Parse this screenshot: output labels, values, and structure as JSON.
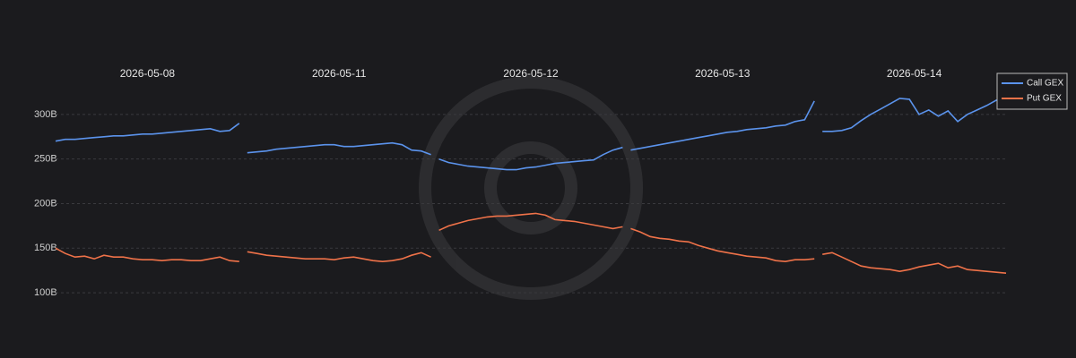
{
  "chart_data": {
    "type": "line",
    "series": [
      {
        "name": "Call GEX",
        "color": "#5b93ec"
      },
      {
        "name": "Put GEX",
        "color": "#ef7249"
      }
    ],
    "ylim": [
      80,
      340
    ],
    "yticks": [
      {
        "value": 100,
        "label": "100B"
      },
      {
        "value": 150,
        "label": "150B"
      },
      {
        "value": 200,
        "label": "200B"
      },
      {
        "value": 250,
        "label": "250B"
      },
      {
        "value": 300,
        "label": "300B"
      }
    ],
    "grid": true,
    "facets": [
      {
        "title": "2026-05-08",
        "values": [
          [
            270,
            272,
            272,
            273,
            274,
            275,
            276,
            276,
            277,
            278,
            278,
            279,
            280,
            281,
            282,
            283,
            284,
            281,
            282,
            290
          ],
          [
            150,
            144,
            140,
            141,
            138,
            142,
            140,
            140,
            138,
            137,
            137,
            136,
            137,
            137,
            136,
            136,
            138,
            140,
            136,
            135
          ]
        ]
      },
      {
        "title": "2026-05-11",
        "values": [
          [
            257,
            258,
            259,
            261,
            262,
            263,
            264,
            265,
            266,
            266,
            264,
            264,
            265,
            266,
            267,
            268,
            266,
            260,
            259,
            255
          ],
          [
            146,
            144,
            142,
            141,
            140,
            139,
            138,
            138,
            138,
            137,
            139,
            140,
            138,
            136,
            135,
            136,
            138,
            142,
            145,
            140
          ]
        ]
      },
      {
        "title": "2026-05-12",
        "values": [
          [
            250,
            246,
            244,
            242,
            241,
            240,
            239,
            238,
            238,
            240,
            241,
            243,
            245,
            246,
            247,
            248,
            249,
            255,
            260,
            263
          ],
          [
            170,
            175,
            178,
            181,
            183,
            185,
            186,
            186,
            187,
            188,
            189,
            187,
            182,
            181,
            180,
            178,
            176,
            174,
            172,
            174
          ]
        ]
      },
      {
        "title": "2026-05-13",
        "values": [
          [
            260,
            262,
            264,
            266,
            268,
            270,
            272,
            274,
            276,
            278,
            280,
            281,
            283,
            284,
            285,
            287,
            288,
            292,
            294,
            315
          ],
          [
            172,
            168,
            163,
            161,
            160,
            158,
            157,
            153,
            150,
            147,
            145,
            143,
            141,
            140,
            139,
            136,
            135,
            137,
            137,
            138
          ]
        ]
      },
      {
        "title": "2026-05-14",
        "values": [
          [
            281,
            281,
            282,
            285,
            293,
            300,
            306,
            312,
            318,
            317,
            300,
            305,
            298,
            304,
            292,
            300,
            305,
            310,
            316,
            310
          ],
          [
            143,
            145,
            140,
            135,
            130,
            128,
            127,
            126,
            124,
            126,
            129,
            131,
            133,
            128,
            130,
            126,
            125,
            124,
            123,
            122
          ]
        ]
      }
    ]
  }
}
